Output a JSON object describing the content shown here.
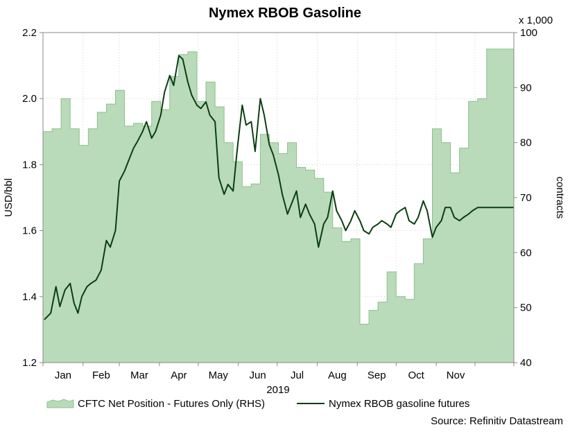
{
  "chart_data": {
    "type": "line",
    "title": "Nymex RBOB Gasoline",
    "x_axis_label": "2019",
    "x_tick_labels": [
      "Jan",
      "Feb",
      "Mar",
      "Apr",
      "May",
      "Jun",
      "Jul",
      "Aug",
      "Sep",
      "Oct",
      "Nov"
    ],
    "x_range": [
      "2019-01-01",
      "2019-12-31"
    ],
    "y_left": {
      "label": "USD/bbl",
      "range": [
        1.2,
        2.2
      ],
      "ticks": [
        "1.2",
        "1.4",
        "1.6",
        "1.8",
        "2.0",
        "2.2"
      ]
    },
    "y_right": {
      "label": "contracts",
      "multiplier_label": "x 1,000",
      "range": [
        40,
        100
      ],
      "ticks": [
        "40",
        "50",
        "60",
        "70",
        "80",
        "90",
        "100"
      ]
    },
    "grid": true,
    "legend_position": "bottom",
    "source": "Source: Refinitiv Datastream",
    "colors": {
      "area_fill": "#b9dbb9",
      "area_edge": "#8cbf8c",
      "line": "#0b3d12",
      "grid": "#cfcfcf",
      "background": "#ffffff"
    },
    "series": [
      {
        "name": "CFTC Net Position - Futures Only (RHS)",
        "type": "area",
        "axis": "right",
        "x": [
          "2019-01-01",
          "2019-01-08",
          "2019-01-15",
          "2019-01-22",
          "2019-01-29",
          "2019-02-05",
          "2019-02-12",
          "2019-02-19",
          "2019-02-26",
          "2019-03-05",
          "2019-03-12",
          "2019-03-19",
          "2019-03-26",
          "2019-04-02",
          "2019-04-09",
          "2019-04-16",
          "2019-04-23",
          "2019-04-30",
          "2019-05-07",
          "2019-05-14",
          "2019-05-21",
          "2019-05-28",
          "2019-06-04",
          "2019-06-11",
          "2019-06-18",
          "2019-06-25",
          "2019-07-02",
          "2019-07-09",
          "2019-07-16",
          "2019-07-23",
          "2019-07-30",
          "2019-08-06",
          "2019-08-13",
          "2019-08-20",
          "2019-08-27",
          "2019-09-03",
          "2019-09-10",
          "2019-09-17",
          "2019-09-24",
          "2019-10-01",
          "2019-10-08",
          "2019-10-15",
          "2019-10-22",
          "2019-10-29",
          "2019-11-05",
          "2019-11-12",
          "2019-11-19",
          "2019-11-26",
          "2019-12-03",
          "2019-12-10",
          "2019-12-17",
          "2019-12-24",
          "2019-12-31"
        ],
        "values": [
          82,
          82.5,
          88,
          82.5,
          79.5,
          82.5,
          85.5,
          87,
          89.5,
          83,
          83.5,
          83,
          87.5,
          86,
          92,
          96,
          96.5,
          87.5,
          91,
          86.5,
          80,
          76.5,
          72,
          72.5,
          81.5,
          80,
          78,
          80,
          75.5,
          75,
          73.5,
          71,
          64.5,
          62,
          62.5,
          47,
          49.5,
          51,
          56.5,
          52,
          51.5,
          58,
          62.5,
          82.5,
          80,
          74.5,
          79,
          87.5,
          88,
          97,
          97,
          97,
          97
        ]
      },
      {
        "name": "Nymex RBOB gasoline futures",
        "type": "line",
        "axis": "left",
        "x": [
          "2019-01-02",
          "2019-01-07",
          "2019-01-11",
          "2019-01-14",
          "2019-01-18",
          "2019-01-22",
          "2019-01-25",
          "2019-01-28",
          "2019-01-31",
          "2019-02-04",
          "2019-02-07",
          "2019-02-11",
          "2019-02-15",
          "2019-02-19",
          "2019-02-22",
          "2019-02-26",
          "2019-03-01",
          "2019-03-05",
          "2019-03-08",
          "2019-03-12",
          "2019-03-15",
          "2019-03-19",
          "2019-03-22",
          "2019-03-26",
          "2019-03-29",
          "2019-04-02",
          "2019-04-05",
          "2019-04-09",
          "2019-04-12",
          "2019-04-16",
          "2019-04-19",
          "2019-04-23",
          "2019-04-26",
          "2019-04-30",
          "2019-05-03",
          "2019-05-07",
          "2019-05-10",
          "2019-05-14",
          "2019-05-17",
          "2019-05-21",
          "2019-05-24",
          "2019-05-28",
          "2019-05-31",
          "2019-06-04",
          "2019-06-07",
          "2019-06-11",
          "2019-06-14",
          "2019-06-18",
          "2019-06-21",
          "2019-06-25",
          "2019-06-28",
          "2019-07-02",
          "2019-07-05",
          "2019-07-09",
          "2019-07-12",
          "2019-07-16",
          "2019-07-19",
          "2019-07-23",
          "2019-07-26",
          "2019-07-30",
          "2019-08-02",
          "2019-08-06",
          "2019-08-09",
          "2019-08-13",
          "2019-08-16",
          "2019-08-20",
          "2019-08-23",
          "2019-08-27",
          "2019-08-30",
          "2019-09-03",
          "2019-09-06",
          "2019-09-10",
          "2019-09-13",
          "2019-09-17",
          "2019-09-20",
          "2019-09-24",
          "2019-09-27",
          "2019-10-01",
          "2019-10-04",
          "2019-10-08",
          "2019-10-11",
          "2019-10-15",
          "2019-10-18",
          "2019-10-22",
          "2019-10-25",
          "2019-10-29",
          "2019-11-01",
          "2019-11-05",
          "2019-11-08",
          "2019-11-12",
          "2019-11-15",
          "2019-11-19",
          "2019-11-22",
          "2019-11-26",
          "2019-11-29",
          "2019-12-03",
          "2019-12-06",
          "2019-12-10",
          "2019-12-13",
          "2019-12-17",
          "2019-12-20",
          "2019-12-24",
          "2019-12-27",
          "2019-12-31"
        ],
        "values": [
          1.33,
          1.35,
          1.43,
          1.37,
          1.42,
          1.44,
          1.38,
          1.35,
          1.4,
          1.43,
          1.44,
          1.45,
          1.48,
          1.57,
          1.55,
          1.6,
          1.75,
          1.78,
          1.81,
          1.85,
          1.87,
          1.9,
          1.93,
          1.88,
          1.9,
          1.95,
          2.02,
          2.07,
          2.04,
          2.13,
          2.12,
          2.05,
          2.01,
          1.98,
          1.97,
          1.99,
          1.95,
          1.93,
          1.76,
          1.71,
          1.74,
          1.72,
          1.84,
          1.98,
          1.92,
          1.93,
          1.84,
          2.0,
          1.95,
          1.86,
          1.83,
          1.77,
          1.71,
          1.65,
          1.68,
          1.72,
          1.64,
          1.68,
          1.65,
          1.62,
          1.55,
          1.62,
          1.64,
          1.72,
          1.66,
          1.63,
          1.6,
          1.63,
          1.66,
          1.63,
          1.6,
          1.59,
          1.61,
          1.62,
          1.63,
          1.62,
          1.61,
          1.65,
          1.66,
          1.67,
          1.63,
          1.62,
          1.64,
          1.69,
          1.66,
          1.58,
          1.61,
          1.63,
          1.67,
          1.67,
          1.64,
          1.63,
          1.64,
          1.65,
          1.66,
          1.67,
          1.67,
          1.67,
          1.67,
          1.67,
          1.67,
          1.67,
          1.67,
          1.67
        ]
      }
    ]
  }
}
